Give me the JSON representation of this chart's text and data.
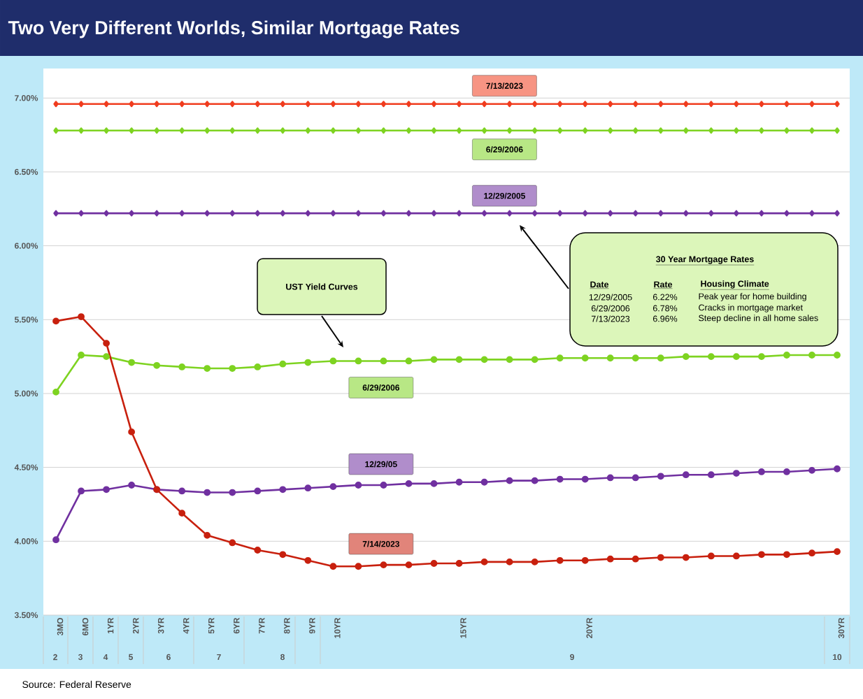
{
  "chart_data": {
    "type": "line",
    "title": "Two Very Different Worlds, Similar Mortgage Rates",
    "categories": [
      "3MO",
      "6MO",
      "1YR",
      "2YR",
      "3YR",
      "4YR",
      "5YR",
      "6YR",
      "7YR",
      "8YR",
      "9YR",
      "10YR",
      null,
      null,
      null,
      null,
      "15YR",
      null,
      null,
      null,
      null,
      "20YR",
      null,
      null,
      null,
      null,
      null,
      null,
      null,
      null,
      null,
      "30YR"
    ],
    "series": [
      {
        "name": "7/13/2023",
        "color": "#f03c1e",
        "marker": "diamond",
        "values": [
          6.96,
          6.96,
          6.96,
          6.96,
          6.96,
          6.96,
          6.96,
          6.96,
          6.96,
          6.96,
          6.96,
          6.96,
          6.96,
          6.96,
          6.96,
          6.96,
          6.96,
          6.96,
          6.96,
          6.96,
          6.96,
          6.96,
          6.96,
          6.96,
          6.96,
          6.96,
          6.96,
          6.96,
          6.96,
          6.96,
          6.96,
          6.96
        ]
      },
      {
        "name": "6/29/2006",
        "color": "#7ed321",
        "marker": "diamond",
        "values": [
          6.78,
          6.78,
          6.78,
          6.78,
          6.78,
          6.78,
          6.78,
          6.78,
          6.78,
          6.78,
          6.78,
          6.78,
          6.78,
          6.78,
          6.78,
          6.78,
          6.78,
          6.78,
          6.78,
          6.78,
          6.78,
          6.78,
          6.78,
          6.78,
          6.78,
          6.78,
          6.78,
          6.78,
          6.78,
          6.78,
          6.78,
          6.78
        ]
      },
      {
        "name": "12/29/2005",
        "color": "#7030a0",
        "marker": "diamond",
        "values": [
          6.22,
          6.22,
          6.22,
          6.22,
          6.22,
          6.22,
          6.22,
          6.22,
          6.22,
          6.22,
          6.22,
          6.22,
          6.22,
          6.22,
          6.22,
          6.22,
          6.22,
          6.22,
          6.22,
          6.22,
          6.22,
          6.22,
          6.22,
          6.22,
          6.22,
          6.22,
          6.22,
          6.22,
          6.22,
          6.22,
          6.22,
          6.22
        ]
      },
      {
        "name": "6/29/2006",
        "color": "#7ed321",
        "marker": "circle",
        "values": [
          5.01,
          5.26,
          5.25,
          5.21,
          5.19,
          5.18,
          5.17,
          5.17,
          5.18,
          5.2,
          5.21,
          5.22,
          5.22,
          5.22,
          5.22,
          5.23,
          5.23,
          5.23,
          5.23,
          5.23,
          5.24,
          5.24,
          5.24,
          5.24,
          5.24,
          5.25,
          5.25,
          5.25,
          5.25,
          5.26,
          5.26,
          5.26
        ]
      },
      {
        "name": "12/29/05",
        "color": "#7030a0",
        "marker": "circle",
        "values": [
          4.01,
          4.34,
          4.35,
          4.38,
          4.35,
          4.34,
          4.33,
          4.33,
          4.34,
          4.35,
          4.36,
          4.37,
          4.38,
          4.38,
          4.39,
          4.39,
          4.4,
          4.4,
          4.41,
          4.41,
          4.42,
          4.42,
          4.43,
          4.43,
          4.44,
          4.45,
          4.45,
          4.46,
          4.47,
          4.47,
          4.48,
          4.49
        ]
      },
      {
        "name": "7/14/2023",
        "color": "#c8200e",
        "marker": "circle",
        "values": [
          5.49,
          5.52,
          5.34,
          4.74,
          4.35,
          4.19,
          4.04,
          3.99,
          3.94,
          3.91,
          3.87,
          3.83,
          3.83,
          3.84,
          3.84,
          3.85,
          3.85,
          3.86,
          3.86,
          3.86,
          3.87,
          3.87,
          3.88,
          3.88,
          3.89,
          3.89,
          3.9,
          3.9,
          3.91,
          3.91,
          3.92,
          3.93
        ]
      }
    ],
    "ylim": [
      3.5,
      7.2
    ],
    "yticks": [
      {
        "value": 3.5,
        "label": "3.50%"
      },
      {
        "value": 4.0,
        "label": "4.00%"
      },
      {
        "value": 4.5,
        "label": "4.50%"
      },
      {
        "value": 5.0,
        "label": "5.00%"
      },
      {
        "value": 5.5,
        "label": "5.50%"
      },
      {
        "value": 6.0,
        "label": "6.00%"
      },
      {
        "value": 6.5,
        "label": "6.50%"
      },
      {
        "value": 7.0,
        "label": "7.00%"
      }
    ],
    "grid": "y",
    "line_style": "solid",
    "annotations": [
      "UST Yield Curves",
      "30 Year Mortgage Rates",
      "Date",
      "Rate",
      "Housing Climate",
      "12/29/2005",
      "6.22%",
      "Peak year for home building",
      "6/29/2006",
      "6.78%",
      "Cracks in mortgage market",
      "7/13/2023",
      "6.96%",
      "Steep decline in all home sales",
      "Source: Federal Reserve",
      "2",
      "3",
      "4",
      "5",
      "6",
      "7",
      "8",
      "9",
      "10"
    ]
  }
}
